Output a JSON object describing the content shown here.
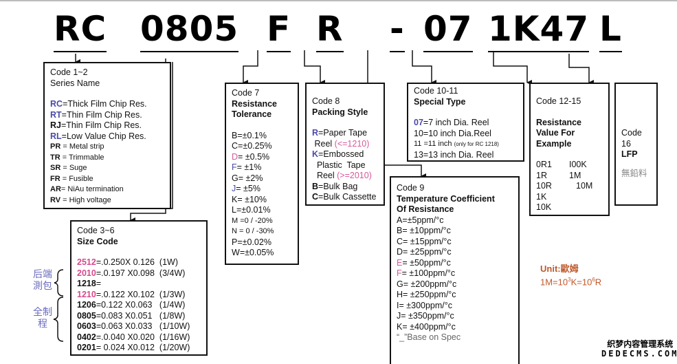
{
  "part_number": [
    "RC",
    "0805",
    "F",
    "R",
    "-",
    "07",
    "1K47",
    "L"
  ],
  "series": {
    "title": "Code 1~2",
    "subtitle": "Series Name",
    "items": [
      {
        "code": "RC",
        "desc": "=Thick Film Chip Res.",
        "style": "blue"
      },
      {
        "code": "RT",
        "desc": "=Thin Film Chip Res.",
        "style": "blue"
      },
      {
        "code": "RJ",
        "desc": "=Thin Film Chip Res.",
        "style": "bold"
      },
      {
        "code": "RL",
        "desc": "=Low Value Chip Res.",
        "style": "blue"
      },
      {
        "code": "PR",
        "desc": " = Metal strip",
        "style": "small"
      },
      {
        "code": "TR",
        "desc": " = Trimmable",
        "style": "small"
      },
      {
        "code": "SR",
        "desc": " = Suge",
        "style": "small"
      },
      {
        "code": "FR",
        "desc": " = Fusible",
        "style": "small"
      },
      {
        "code": "AR",
        "desc": "= NiAu termination",
        "style": "small"
      },
      {
        "code": "RV",
        "desc": " = High voltage",
        "style": "small"
      }
    ]
  },
  "size": {
    "title": "Code 3~6",
    "subtitle": "Size Code",
    "items": [
      {
        "code": "2512",
        "desc": "=.0.250X 0.126  (1W)",
        "style": "pink"
      },
      {
        "code": "2010",
        "desc": "=.0.197 X0.098  (3/4W)",
        "style": "pink"
      },
      {
        "code": "1218",
        "desc": "=",
        "style": "bold"
      },
      {
        "code": "1210",
        "desc": "=.0.122 X0.102  (1/3W)",
        "style": "pink"
      },
      {
        "code": "1206",
        "desc": "=0.122 X0.063   (1/4W)",
        "style": "bold"
      },
      {
        "code": "0805",
        "desc": "=0.083 X0.051   (1/8W)",
        "style": "bold"
      },
      {
        "code": "0603",
        "desc": "=0.063 X0.033   (1/10W)",
        "style": "bold"
      },
      {
        "code": "0402",
        "desc": "=.0.040 X0.020  (1/16W)",
        "style": "bold"
      },
      {
        "code": "0201",
        "desc": "= 0.024 X0.012  (1/20W)",
        "style": "bold"
      }
    ],
    "side_label_1": "后端測包",
    "side_label_2": "全制程"
  },
  "tolerance": {
    "title": "Code 7",
    "subtitle_1": "Resistance",
    "subtitle_2": "Tolerance",
    "items": [
      {
        "code": "B",
        "desc": "=±0.1%",
        "style": "plain"
      },
      {
        "code": "C",
        "desc": "=±0.25%",
        "style": "plain"
      },
      {
        "code": "D",
        "desc": "= ±0.5%",
        "style": "pinkn"
      },
      {
        "code": "F",
        "desc": "= ±1%",
        "style": "bluen"
      },
      {
        "code": "G",
        "desc": "= ±2%",
        "style": "plain"
      },
      {
        "code": "J",
        "desc": "= ±5%",
        "style": "bluen"
      },
      {
        "code": "K",
        "desc": "= ±10%",
        "style": "plain"
      },
      {
        "code": "L",
        "desc": "=±0.01%",
        "style": "plain"
      },
      {
        "code": "M",
        "desc": " =0 / -20%",
        "style": "small"
      },
      {
        "code": "N",
        "desc": " = 0 / -30%",
        "style": "small"
      },
      {
        "code": "P",
        "desc": "=±0.02%",
        "style": "plain"
      },
      {
        "code": "W",
        "desc": "=±0.05%",
        "style": "plain"
      }
    ]
  },
  "packing": {
    "title": "Code 8",
    "subtitle": "Packing Style",
    "r_code": "R",
    "r_desc": "=Paper Tape",
    "r_desc2": " Reel ",
    "r_note": "(<=1210)",
    "k_code": "K",
    "k_desc": "=Embossed",
    "k_desc2": "  Plastic  Tape",
    "k_desc3": "  Reel ",
    "k_note": "(>=2010)",
    "b_code": "B",
    "b_desc": "=Bulk Bag",
    "c_code": "C",
    "c_desc": "=Bulk Cassette"
  },
  "special": {
    "title": "Code 10-11",
    "subtitle": "Special Type",
    "l1_code": "07",
    "l1_desc": "=7 inch Dia. Reel",
    "l2": "10=10 inch Dia.Reel",
    "l3": "11 =11 inch ",
    "l3_note": "(only for RC 1218)",
    "l4": "13=13 inch Dia. Reel"
  },
  "tcr": {
    "title": "Code 9",
    "subtitle_1": "Temperature Coefficient",
    "subtitle_2": "Of Resistance",
    "items": [
      {
        "code": "A",
        "desc": "=±5ppm/°c",
        "style": "plain"
      },
      {
        "code": "B",
        "desc": "= ±10ppm/°c",
        "style": "plain"
      },
      {
        "code": "C",
        "desc": "= ±15ppm/°c",
        "style": "plain"
      },
      {
        "code": "D",
        "desc": "= ±25ppm/°c",
        "style": "plain"
      },
      {
        "code": "E",
        "desc": "= ±50ppm/°c",
        "style": "pinkn"
      },
      {
        "code": "F",
        "desc": "= ±100ppm/°c",
        "style": "pinkn"
      },
      {
        "code": "G",
        "desc": "= ±200ppm/°c",
        "style": "plain"
      },
      {
        "code": "H",
        "desc": "= ±250ppm/°c",
        "style": "plain"
      },
      {
        "code": "I",
        "desc": "= ±300ppm/°c",
        "style": "plain"
      },
      {
        "code": "J",
        "desc": "= ±350ppm/°c",
        "style": "plain"
      },
      {
        "code": "K",
        "desc": "= ±400ppm/°c",
        "style": "plain"
      }
    ],
    "footer": "“_”Base on Spec"
  },
  "resistance": {
    "title": "Code 12-15",
    "subtitle_1": "Resistance",
    "subtitle_2": "Value For",
    "subtitle_3": "Example",
    "left": [
      "0R1",
      "1R",
      "10R",
      "1K",
      "10K"
    ],
    "right": [
      "I00K",
      "1M",
      "10M"
    ]
  },
  "lfp": {
    "title": "Code 16",
    "subtitle": "LFP",
    "note": "無鉛料"
  },
  "unit": {
    "label": "Unit:歐姆",
    "formula_a": "1M=10",
    "sup1": "3",
    "formula_b": "K=10",
    "sup2": "6",
    "formula_c": "R"
  },
  "watermark": {
    "line1": "织梦内容管理系统",
    "line2": "DEDECMS.COM"
  }
}
